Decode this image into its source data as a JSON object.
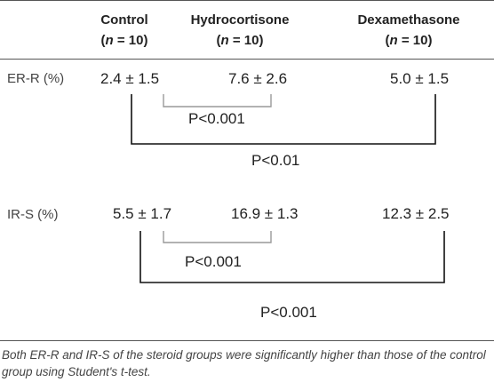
{
  "table": {
    "columns": [
      {
        "name": "Control",
        "n_prefix": "(",
        "n_var": "n",
        "n_suffix": " = 10)"
      },
      {
        "name": "Hydrocortisone",
        "n_prefix": "(",
        "n_var": "n",
        "n_suffix": " = 10)"
      },
      {
        "name": "Dexamethasone",
        "n_prefix": "(",
        "n_var": "n",
        "n_suffix": " = 10)"
      }
    ],
    "rows": [
      {
        "label": "ER-R (%)",
        "values": [
          "2.4 ± 1.5",
          "7.6 ± 2.6",
          "5.0 ± 1.5"
        ],
        "comparison_short": "P<0.001",
        "comparison_long": "P<0.01"
      },
      {
        "label": "IR-S (%)",
        "values": [
          "5.5 ± 1.7",
          "16.9 ± 1.3",
          "12.3 ± 2.5"
        ],
        "comparison_short": "P<0.001",
        "comparison_long": "P<0.001"
      }
    ]
  },
  "footnote": "Both ER-R and IR-S of the steroid groups were significantly higher than those of the control group using Student's t-test."
}
